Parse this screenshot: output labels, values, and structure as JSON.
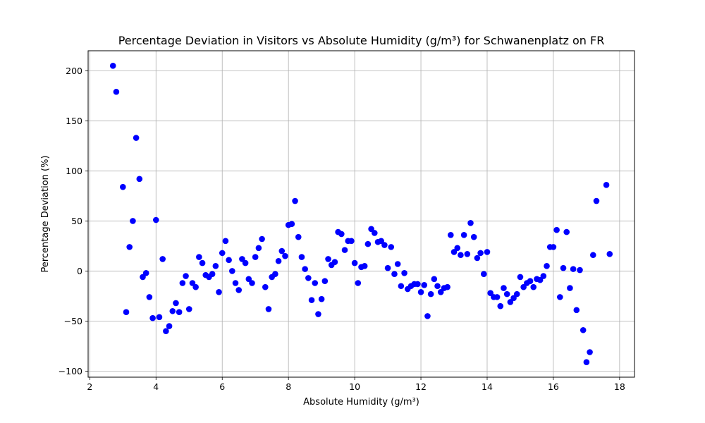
{
  "chart_data": {
    "type": "scatter",
    "title": "Percentage Deviation in Visitors vs Absolute Humidity (g/m³) for Schwanenplatz on FR",
    "xlabel": "Absolute Humidity (g/m³)",
    "ylabel": "Percentage Deviation (%)",
    "xlim": [
      1.95,
      18.45
    ],
    "ylim": [
      -106,
      220
    ],
    "xticks": [
      2,
      4,
      6,
      8,
      10,
      12,
      14,
      16,
      18
    ],
    "yticks": [
      -100,
      -50,
      0,
      50,
      100,
      150,
      200
    ],
    "grid": true,
    "legend": "none",
    "marker_color": "#0000ff",
    "points": [
      [
        2.7,
        205
      ],
      [
        2.8,
        179
      ],
      [
        3.0,
        84
      ],
      [
        3.1,
        -41
      ],
      [
        3.2,
        24
      ],
      [
        3.3,
        50
      ],
      [
        3.4,
        133
      ],
      [
        3.5,
        92
      ],
      [
        3.6,
        -6
      ],
      [
        3.7,
        -2
      ],
      [
        3.8,
        -26
      ],
      [
        3.9,
        -47
      ],
      [
        4.0,
        51
      ],
      [
        4.1,
        -46
      ],
      [
        4.2,
        12
      ],
      [
        4.3,
        -60
      ],
      [
        4.4,
        -55
      ],
      [
        4.5,
        -40
      ],
      [
        4.6,
        -32
      ],
      [
        4.7,
        -41
      ],
      [
        4.8,
        -12
      ],
      [
        4.9,
        -5
      ],
      [
        5.0,
        -38
      ],
      [
        5.1,
        -12
      ],
      [
        5.2,
        -16
      ],
      [
        5.3,
        14
      ],
      [
        5.4,
        8
      ],
      [
        5.5,
        -4
      ],
      [
        5.6,
        -6
      ],
      [
        5.7,
        -3
      ],
      [
        5.8,
        5
      ],
      [
        5.9,
        -21
      ],
      [
        6.0,
        18
      ],
      [
        6.1,
        30
      ],
      [
        6.2,
        11
      ],
      [
        6.3,
        0
      ],
      [
        6.4,
        -12
      ],
      [
        6.5,
        -19
      ],
      [
        6.6,
        12
      ],
      [
        6.7,
        8
      ],
      [
        6.8,
        -8
      ],
      [
        6.9,
        -12
      ],
      [
        7.0,
        14
      ],
      [
        7.1,
        23
      ],
      [
        7.2,
        32
      ],
      [
        7.3,
        -16
      ],
      [
        7.4,
        -38
      ],
      [
        7.5,
        -6
      ],
      [
        7.6,
        -3
      ],
      [
        7.7,
        10
      ],
      [
        7.8,
        20
      ],
      [
        7.9,
        15
      ],
      [
        8.0,
        46
      ],
      [
        8.1,
        47
      ],
      [
        8.2,
        70
      ],
      [
        8.3,
        34
      ],
      [
        8.4,
        14
      ],
      [
        8.5,
        2
      ],
      [
        8.6,
        -7
      ],
      [
        8.7,
        -29
      ],
      [
        8.8,
        -12
      ],
      [
        8.9,
        -43
      ],
      [
        9.0,
        -28
      ],
      [
        9.1,
        -10
      ],
      [
        9.2,
        12
      ],
      [
        9.3,
        6
      ],
      [
        9.4,
        9
      ],
      [
        9.5,
        39
      ],
      [
        9.6,
        37
      ],
      [
        9.7,
        21
      ],
      [
        9.8,
        30
      ],
      [
        9.9,
        30
      ],
      [
        10.0,
        8
      ],
      [
        10.1,
        -12
      ],
      [
        10.2,
        4
      ],
      [
        10.3,
        5
      ],
      [
        10.4,
        27
      ],
      [
        10.5,
        42
      ],
      [
        10.6,
        38
      ],
      [
        10.7,
        29
      ],
      [
        10.8,
        30
      ],
      [
        10.9,
        26
      ],
      [
        11.0,
        3
      ],
      [
        11.1,
        24
      ],
      [
        11.2,
        -3
      ],
      [
        11.3,
        7
      ],
      [
        11.4,
        -15
      ],
      [
        11.5,
        -2
      ],
      [
        11.6,
        -18
      ],
      [
        11.7,
        -15
      ],
      [
        11.8,
        -13
      ],
      [
        11.9,
        -13
      ],
      [
        12.0,
        -21
      ],
      [
        12.1,
        -14
      ],
      [
        12.2,
        -45
      ],
      [
        12.3,
        -23
      ],
      [
        12.4,
        -8
      ],
      [
        12.5,
        -15
      ],
      [
        12.6,
        -21
      ],
      [
        12.7,
        -17
      ],
      [
        12.8,
        -16
      ],
      [
        12.9,
        36
      ],
      [
        13.0,
        19
      ],
      [
        13.1,
        23
      ],
      [
        13.2,
        16
      ],
      [
        13.3,
        36
      ],
      [
        13.4,
        17
      ],
      [
        13.5,
        48
      ],
      [
        13.6,
        34
      ],
      [
        13.7,
        13
      ],
      [
        13.8,
        18
      ],
      [
        13.9,
        -3
      ],
      [
        14.0,
        19
      ],
      [
        14.1,
        -22
      ],
      [
        14.2,
        -26
      ],
      [
        14.3,
        -26
      ],
      [
        14.4,
        -35
      ],
      [
        14.5,
        -17
      ],
      [
        14.6,
        -23
      ],
      [
        14.7,
        -31
      ],
      [
        14.8,
        -27
      ],
      [
        14.9,
        -23
      ],
      [
        15.0,
        -6
      ],
      [
        15.1,
        -16
      ],
      [
        15.2,
        -12
      ],
      [
        15.3,
        -10
      ],
      [
        15.4,
        -16
      ],
      [
        15.5,
        -8
      ],
      [
        15.6,
        -9
      ],
      [
        15.7,
        -5
      ],
      [
        15.8,
        5
      ],
      [
        15.9,
        24
      ],
      [
        16.0,
        24
      ],
      [
        16.1,
        41
      ],
      [
        16.2,
        -26
      ],
      [
        16.3,
        3
      ],
      [
        16.4,
        39
      ],
      [
        16.5,
        -17
      ],
      [
        16.6,
        2
      ],
      [
        16.7,
        -39
      ],
      [
        16.8,
        1
      ],
      [
        16.9,
        -59
      ],
      [
        17.0,
        -91
      ],
      [
        17.1,
        -81
      ],
      [
        17.2,
        16
      ],
      [
        17.3,
        70
      ],
      [
        17.6,
        86
      ],
      [
        17.7,
        17
      ]
    ]
  }
}
